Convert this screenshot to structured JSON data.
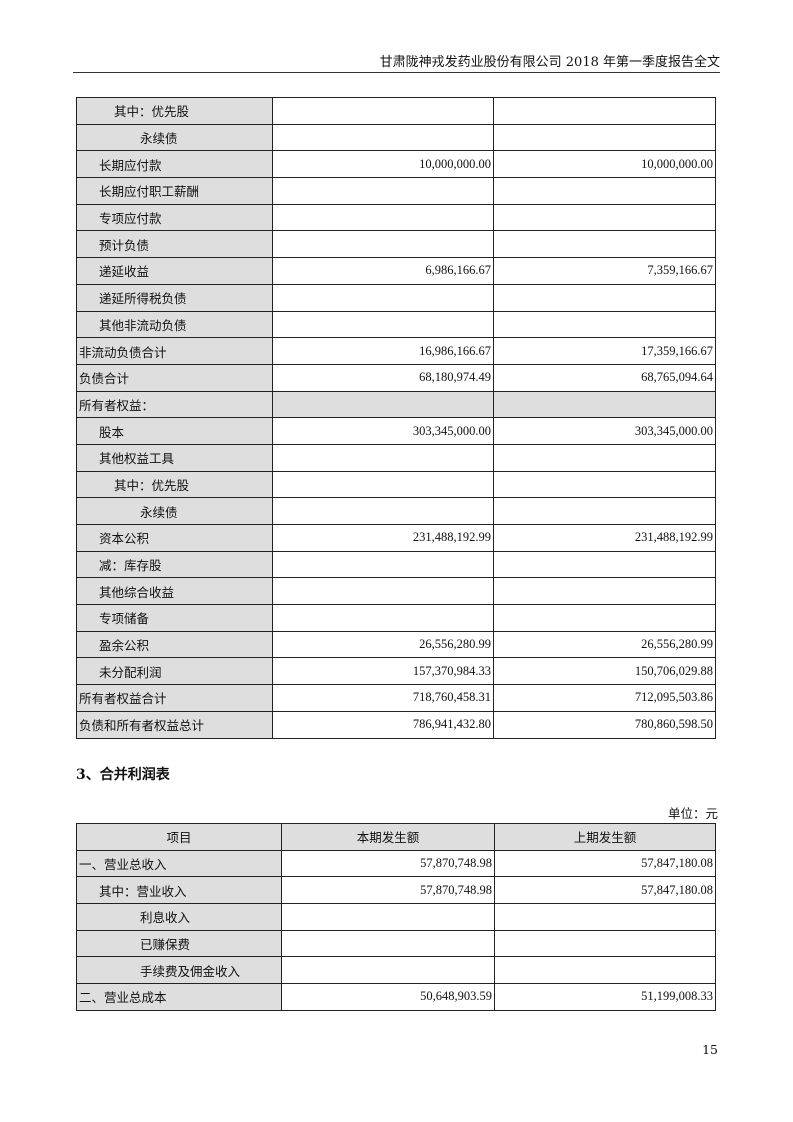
{
  "header": {
    "title": "甘肃陇神戎发药业股份有限公司 2018 年第一季度报告全文"
  },
  "balance_table": {
    "rows": [
      {
        "label": "其中：优先股",
        "level": 2,
        "current": "",
        "previous": ""
      },
      {
        "label": "永续债",
        "level": 3,
        "current": "",
        "previous": ""
      },
      {
        "label": "长期应付款",
        "level": 1,
        "current": "10,000,000.00",
        "previous": "10,000,000.00"
      },
      {
        "label": "长期应付职工薪酬",
        "level": 1,
        "current": "",
        "previous": ""
      },
      {
        "label": "专项应付款",
        "level": 1,
        "current": "",
        "previous": ""
      },
      {
        "label": "预计负债",
        "level": 1,
        "current": "",
        "previous": ""
      },
      {
        "label": "递延收益",
        "level": 1,
        "current": "6,986,166.67",
        "previous": "7,359,166.67"
      },
      {
        "label": "递延所得税负债",
        "level": 1,
        "current": "",
        "previous": ""
      },
      {
        "label": "其他非流动负债",
        "level": 1,
        "current": "",
        "previous": ""
      },
      {
        "label": "非流动负债合计",
        "level": 0,
        "current": "16,986,166.67",
        "previous": "17,359,166.67"
      },
      {
        "label": "负债合计",
        "level": 0,
        "current": "68,180,974.49",
        "previous": "68,765,094.64"
      },
      {
        "label": "所有者权益：",
        "level": 0,
        "current": "",
        "previous": "",
        "shaded": true
      },
      {
        "label": "股本",
        "level": 1,
        "current": "303,345,000.00",
        "previous": "303,345,000.00"
      },
      {
        "label": "其他权益工具",
        "level": 1,
        "current": "",
        "previous": ""
      },
      {
        "label": "其中：优先股",
        "level": 2,
        "current": "",
        "previous": ""
      },
      {
        "label": "永续债",
        "level": 3,
        "current": "",
        "previous": ""
      },
      {
        "label": "资本公积",
        "level": 1,
        "current": "231,488,192.99",
        "previous": "231,488,192.99"
      },
      {
        "label": "减：库存股",
        "level": 1,
        "current": "",
        "previous": ""
      },
      {
        "label": "其他综合收益",
        "level": 1,
        "current": "",
        "previous": ""
      },
      {
        "label": "专项储备",
        "level": 1,
        "current": "",
        "previous": ""
      },
      {
        "label": "盈余公积",
        "level": 1,
        "current": "26,556,280.99",
        "previous": "26,556,280.99"
      },
      {
        "label": "未分配利润",
        "level": 1,
        "current": "157,370,984.33",
        "previous": "150,706,029.88"
      },
      {
        "label": "所有者权益合计",
        "level": 0,
        "current": "718,760,458.31",
        "previous": "712,095,503.86"
      },
      {
        "label": "负债和所有者权益总计",
        "level": 0,
        "current": "786,941,432.80",
        "previous": "780,860,598.50"
      }
    ]
  },
  "section": {
    "title": "3、合并利润表",
    "unit": "单位：元"
  },
  "income_table": {
    "headers": [
      "项目",
      "本期发生额",
      "上期发生额"
    ],
    "rows": [
      {
        "label": "一、营业总收入",
        "level": 0,
        "current": "57,870,748.98",
        "previous": "57,847,180.08"
      },
      {
        "label": "其中：营业收入",
        "level": 1,
        "current": "57,870,748.98",
        "previous": "57,847,180.08"
      },
      {
        "label": "利息收入",
        "level": 3,
        "current": "",
        "previous": ""
      },
      {
        "label": "已赚保费",
        "level": 3,
        "current": "",
        "previous": ""
      },
      {
        "label": "手续费及佣金收入",
        "level": 3,
        "current": "",
        "previous": ""
      },
      {
        "label": "二、营业总成本",
        "level": 0,
        "current": "50,648,903.59",
        "previous": "51,199,008.33"
      }
    ]
  },
  "footer": {
    "page": "15"
  }
}
